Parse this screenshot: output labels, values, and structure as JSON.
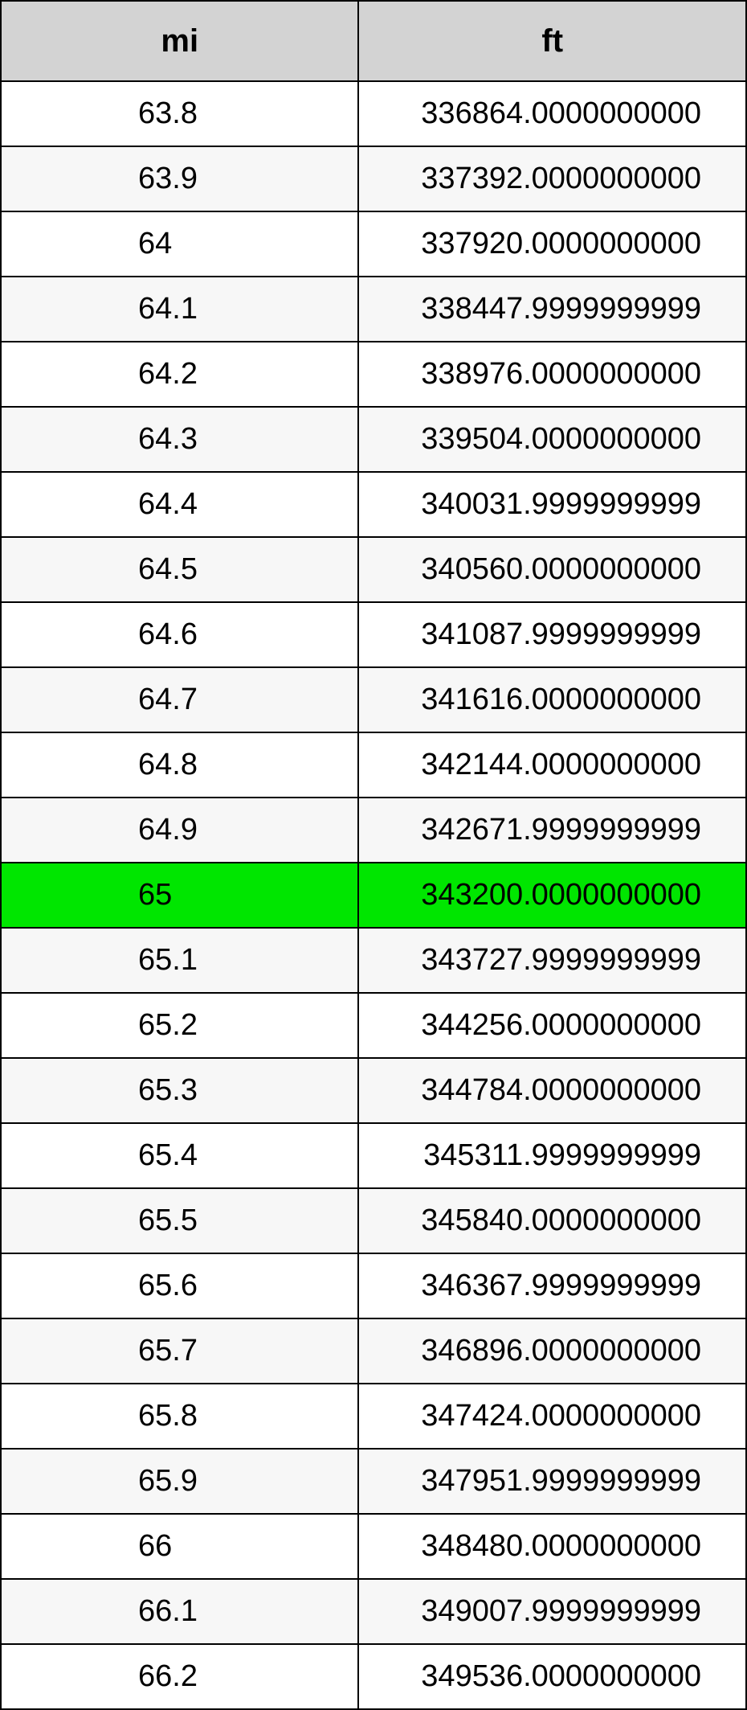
{
  "table": {
    "type": "table",
    "background_color": "#ffffff",
    "border_color": "#000000",
    "header_bg": "#d3d3d3",
    "stripe_odd_bg": "#ffffff",
    "stripe_even_bg": "#f7f7f7",
    "highlight_bg": "#00e600",
    "header_fontsize": 40,
    "cell_fontsize": 38,
    "columns": [
      {
        "label": "mi",
        "align": "center_left_offset"
      },
      {
        "label": "ft",
        "align": "right"
      }
    ],
    "highlight_row_index": 12,
    "rows": [
      [
        "63.8",
        "336864.0000000000"
      ],
      [
        "63.9",
        "337392.0000000000"
      ],
      [
        "64",
        "337920.0000000000"
      ],
      [
        "64.1",
        "338447.9999999999"
      ],
      [
        "64.2",
        "338976.0000000000"
      ],
      [
        "64.3",
        "339504.0000000000"
      ],
      [
        "64.4",
        "340031.9999999999"
      ],
      [
        "64.5",
        "340560.0000000000"
      ],
      [
        "64.6",
        "341087.9999999999"
      ],
      [
        "64.7",
        "341616.0000000000"
      ],
      [
        "64.8",
        "342144.0000000000"
      ],
      [
        "64.9",
        "342671.9999999999"
      ],
      [
        "65",
        "343200.0000000000"
      ],
      [
        "65.1",
        "343727.9999999999"
      ],
      [
        "65.2",
        "344256.0000000000"
      ],
      [
        "65.3",
        "344784.0000000000"
      ],
      [
        "65.4",
        "345311.9999999999"
      ],
      [
        "65.5",
        "345840.0000000000"
      ],
      [
        "65.6",
        "346367.9999999999"
      ],
      [
        "65.7",
        "346896.0000000000"
      ],
      [
        "65.8",
        "347424.0000000000"
      ],
      [
        "65.9",
        "347951.9999999999"
      ],
      [
        "66",
        "348480.0000000000"
      ],
      [
        "66.1",
        "349007.9999999999"
      ],
      [
        "66.2",
        "349536.0000000000"
      ]
    ]
  }
}
